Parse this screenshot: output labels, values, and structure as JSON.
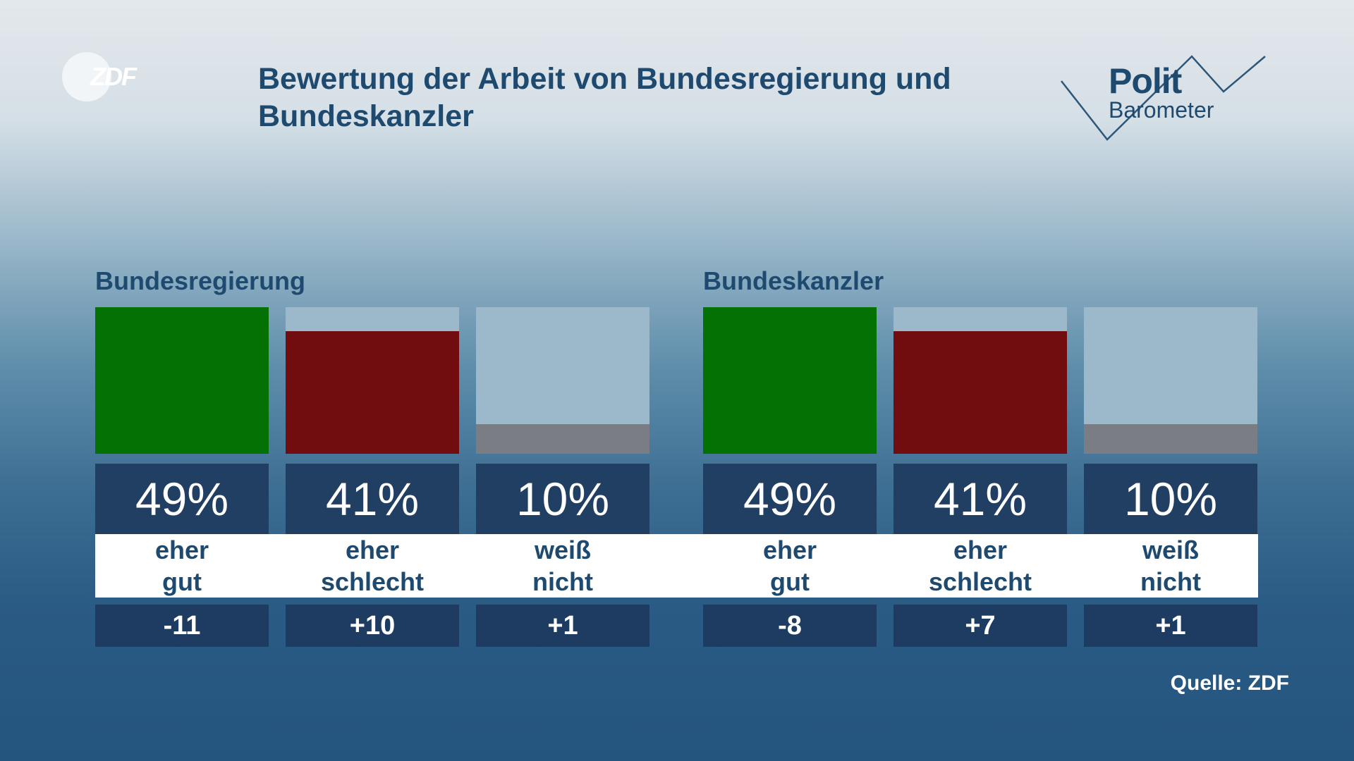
{
  "brand": {
    "zdf": "ZDF",
    "polit": "Polit",
    "barometer": "Barometer"
  },
  "title": "Bewertung der Arbeit von Bundesregierung und Bundeskanzler",
  "source": "Quelle: ZDF",
  "colors": {
    "eher_gut": "#037103",
    "eher_schlecht": "#710d0e",
    "weiss_nicht": "#7a7d83",
    "bar_background": "#9cb9cc",
    "value_box": "#203f62",
    "text": "#1f4a6f"
  },
  "chart_data": [
    {
      "type": "bar",
      "title": "Bundesregierung",
      "categories": [
        [
          "eher",
          "gut"
        ],
        [
          "eher",
          "schlecht"
        ],
        [
          "weiß",
          "nicht"
        ]
      ],
      "values": [
        49,
        41,
        10
      ],
      "value_labels": [
        "49%",
        "41%",
        "10%"
      ],
      "changes": [
        "-11",
        "+10",
        "+1"
      ],
      "colors": [
        "#037103",
        "#710d0e",
        "#7a7d83"
      ],
      "ylim": [
        0,
        49
      ]
    },
    {
      "type": "bar",
      "title": "Bundeskanzler",
      "categories": [
        [
          "eher",
          "gut"
        ],
        [
          "eher",
          "schlecht"
        ],
        [
          "weiß",
          "nicht"
        ]
      ],
      "values": [
        49,
        41,
        10
      ],
      "value_labels": [
        "49%",
        "41%",
        "10%"
      ],
      "changes": [
        "-8",
        "+7",
        "+1"
      ],
      "colors": [
        "#037103",
        "#710d0e",
        "#7a7d83"
      ],
      "ylim": [
        0,
        49
      ]
    }
  ]
}
